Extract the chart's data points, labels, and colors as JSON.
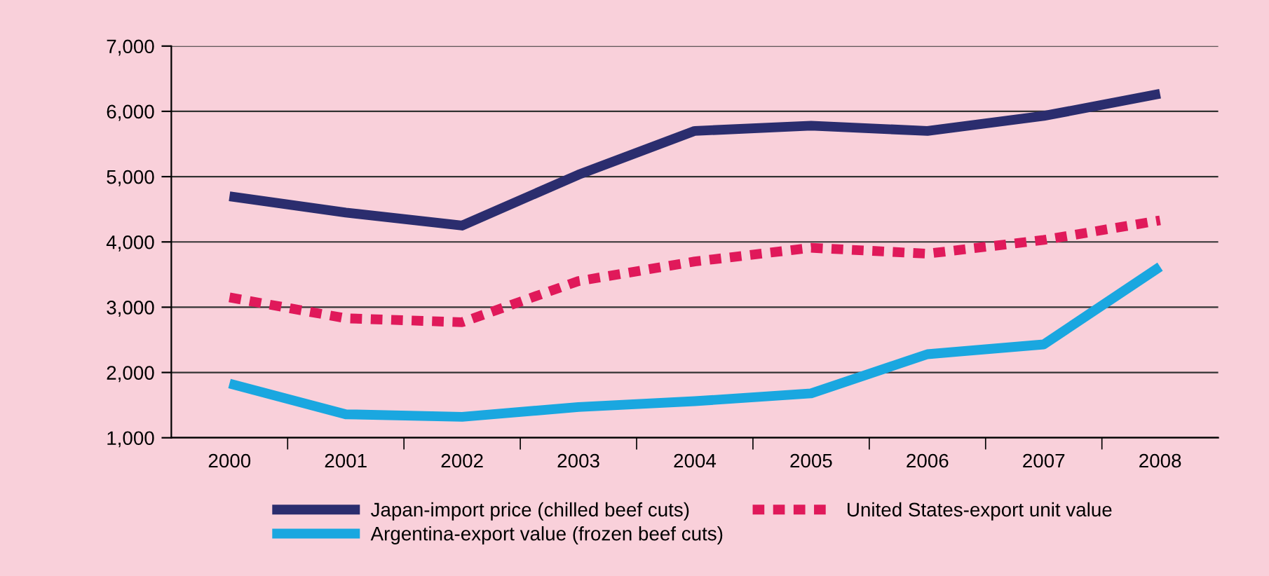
{
  "chart_data": {
    "type": "line",
    "categories": [
      "2000",
      "2001",
      "2002",
      "2003",
      "2004",
      "2005",
      "2006",
      "2007",
      "2008"
    ],
    "series": [
      {
        "name": "Japan-import price (chilled beef cuts)",
        "color": "#2b2d6e",
        "line_style": "solid",
        "values": [
          4700,
          4450,
          4250,
          5030,
          5700,
          5780,
          5700,
          5930,
          6270
        ]
      },
      {
        "name": "Argentina-export value (frozen beef cuts)",
        "color": "#1aa7e0",
        "line_style": "solid",
        "values": [
          1830,
          1360,
          1320,
          1470,
          1560,
          1680,
          2280,
          2430,
          3620
        ]
      },
      {
        "name": "United States-export unit value",
        "color": "#e0195a",
        "line_style": "dashed",
        "values": [
          3150,
          2830,
          2770,
          3400,
          3700,
          3910,
          3820,
          4030,
          4330
        ]
      }
    ],
    "ylim": [
      1000,
      7000
    ],
    "yticks": [
      {
        "value": 1000,
        "label": "1,000"
      },
      {
        "value": 2000,
        "label": "2,000"
      },
      {
        "value": 3000,
        "label": "3,000"
      },
      {
        "value": 4000,
        "label": "4,000"
      },
      {
        "value": 5000,
        "label": "5,000"
      },
      {
        "value": 6000,
        "label": "6,000"
      },
      {
        "value": 7000,
        "label": "7,000"
      }
    ],
    "grid": "y",
    "legend": "bottom",
    "marker": "none"
  }
}
